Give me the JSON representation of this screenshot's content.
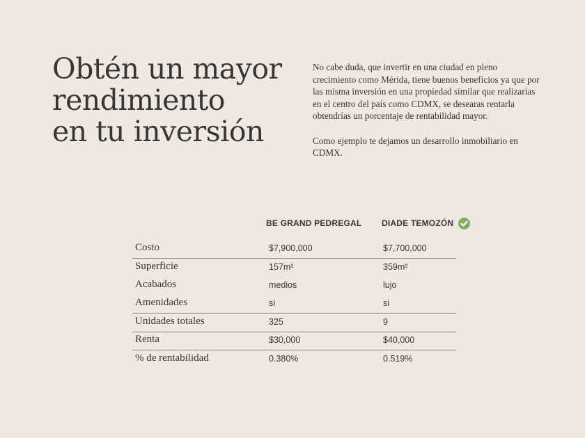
{
  "title": [
    "Obtén un mayor",
    "rendimiento",
    "en tu inversión"
  ],
  "intro": [
    "No cabe duda, que invertir en una ciudad en pleno crecimiento como Mérida, tiene buenos beneficios ya que por las misma inversión en una propiedad similar que realizarías en el centro del país como CDMX, se desearas rentarla obtendrías un porcentaje de rentabilidad mayor.",
    "Como ejemplo te dejamos un desarrollo inmobiliario en CDMX."
  ],
  "table": {
    "columns": [
      "BE GRAND PEDREGAL",
      "DIADE TEMOZÓN"
    ],
    "highlight_icon": "check-circle-icon",
    "highlight_color": "#7fae5e",
    "rows": [
      {
        "label": "Costo",
        "a": "$7,900,000",
        "b": "$7,700,000"
      },
      {
        "label": "Superficie",
        "a": "157m²",
        "b": "359m²"
      },
      {
        "label": "Acabados",
        "a": "medios",
        "b": "lujo"
      },
      {
        "label": "Amenidades",
        "a": "si",
        "b": "si"
      },
      {
        "label": "Unidades totales",
        "a": "325",
        "b": "9"
      },
      {
        "label": "Renta",
        "a": "$30,000",
        "b": "$40,000"
      },
      {
        "label": "% de rentabilidad",
        "a": "0.380%",
        "b": "0.519%"
      }
    ]
  }
}
